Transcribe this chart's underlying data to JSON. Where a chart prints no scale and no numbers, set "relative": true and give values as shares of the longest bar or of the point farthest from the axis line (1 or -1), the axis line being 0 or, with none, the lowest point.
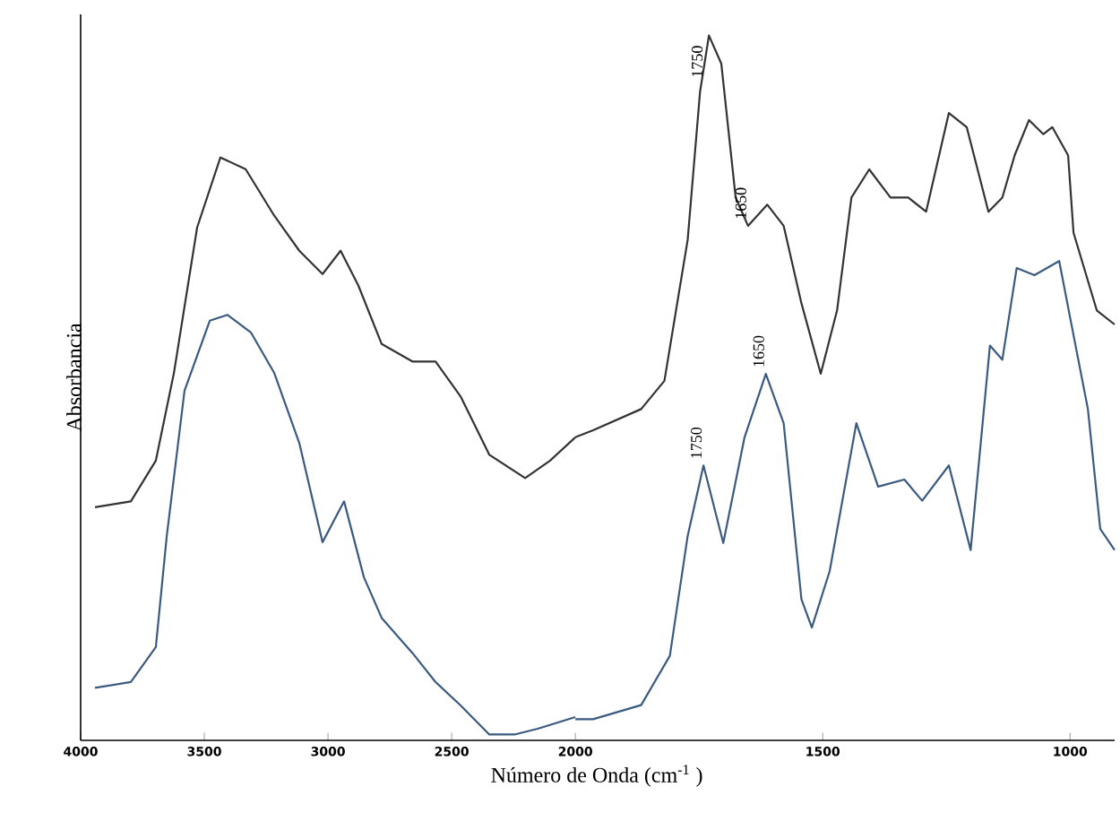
{
  "chart_data": [
    {
      "type": "line",
      "relative": true,
      "xlabel": "Número de Onda (cm$^{-1}$ )",
      "ylabel": "Absorbancia",
      "xlim": [
        4000,
        2000
      ],
      "xticks": [
        4000,
        3500,
        3000,
        2500,
        2000
      ],
      "marker": "none",
      "line_style": "solid",
      "series": [
        {
          "color": "#333333",
          "x": [
            3942,
            3797,
            3696,
            3623,
            3529,
            3435,
            3333,
            3217,
            3116,
            3022,
            2949,
            2877,
            2783,
            2659,
            2565,
            2464,
            2348,
            2203,
            2102,
            2000
          ],
          "values": [
            0.4,
            0.41,
            0.48,
            0.63,
            0.88,
            1,
            0.98,
            0.9,
            0.84,
            0.8,
            0.84,
            0.78,
            0.68,
            0.65,
            0.65,
            0.59,
            0.49,
            0.45,
            0.48,
            0.52
          ]
        },
        {
          "color": "#3a5a80",
          "x": [
            3942,
            3797,
            3696,
            3652,
            3580,
            3478,
            3406,
            3312,
            3217,
            3116,
            3022,
            2935,
            2855,
            2783,
            2659,
            2565,
            2464,
            2348,
            2246,
            2152,
            2000
          ],
          "values": [
            0.09,
            0.1,
            0.16,
            0.35,
            0.6,
            0.72,
            0.73,
            0.7,
            0.63,
            0.51,
            0.34,
            0.41,
            0.28,
            0.21,
            0.15,
            0.1,
            0.06,
            0.01,
            0.01,
            0.02,
            0.04
          ]
        }
      ]
    },
    {
      "type": "line",
      "relative": true,
      "xlim": [
        2000,
        910
      ],
      "xticks": [
        1500,
        1000
      ],
      "marker": "none",
      "line_style": "solid",
      "series": [
        {
          "color": "#333333",
          "x": [
            2000,
            1964,
            1867,
            1820,
            1773,
            1748,
            1730,
            1705,
            1676,
            1651,
            1612,
            1579,
            1543,
            1504,
            1471,
            1442,
            1406,
            1363,
            1327,
            1291,
            1245,
            1209,
            1165,
            1137,
            1112,
            1083,
            1054,
            1036,
            1004,
            993,
            946,
            910
          ],
          "values": [
            0.43,
            0.44,
            0.47,
            0.51,
            0.71,
            0.92,
            1,
            0.96,
            0.77,
            0.73,
            0.76,
            0.73,
            0.62,
            0.52,
            0.61,
            0.77,
            0.81,
            0.77,
            0.77,
            0.75,
            0.89,
            0.87,
            0.75,
            0.77,
            0.83,
            0.88,
            0.86,
            0.87,
            0.83,
            0.72,
            0.61,
            0.59
          ]
        },
        {
          "color": "#3a5a80",
          "x": [
            2000,
            1964,
            1867,
            1809,
            1773,
            1741,
            1701,
            1658,
            1615,
            1579,
            1543,
            1522,
            1486,
            1432,
            1388,
            1335,
            1299,
            1245,
            1201,
            1162,
            1137,
            1108,
            1072,
            1022,
            1000,
            964,
            939,
            910
          ],
          "values": [
            0.03,
            0.03,
            0.05,
            0.12,
            0.29,
            0.39,
            0.28,
            0.43,
            0.52,
            0.45,
            0.2,
            0.16,
            0.24,
            0.45,
            0.36,
            0.37,
            0.34,
            0.39,
            0.27,
            0.56,
            0.54,
            0.67,
            0.66,
            0.68,
            0.6,
            0.47,
            0.3,
            0.27
          ]
        }
      ],
      "annotations": [
        {
          "text": "1750",
          "x": 1730,
          "y": 1
        },
        {
          "text": "1650",
          "x": 1651,
          "y": 0.73
        },
        {
          "text": "1750",
          "x": 1741,
          "y": 0.39
        },
        {
          "text": "1650",
          "x": 1615,
          "y": 0.52
        }
      ]
    }
  ]
}
